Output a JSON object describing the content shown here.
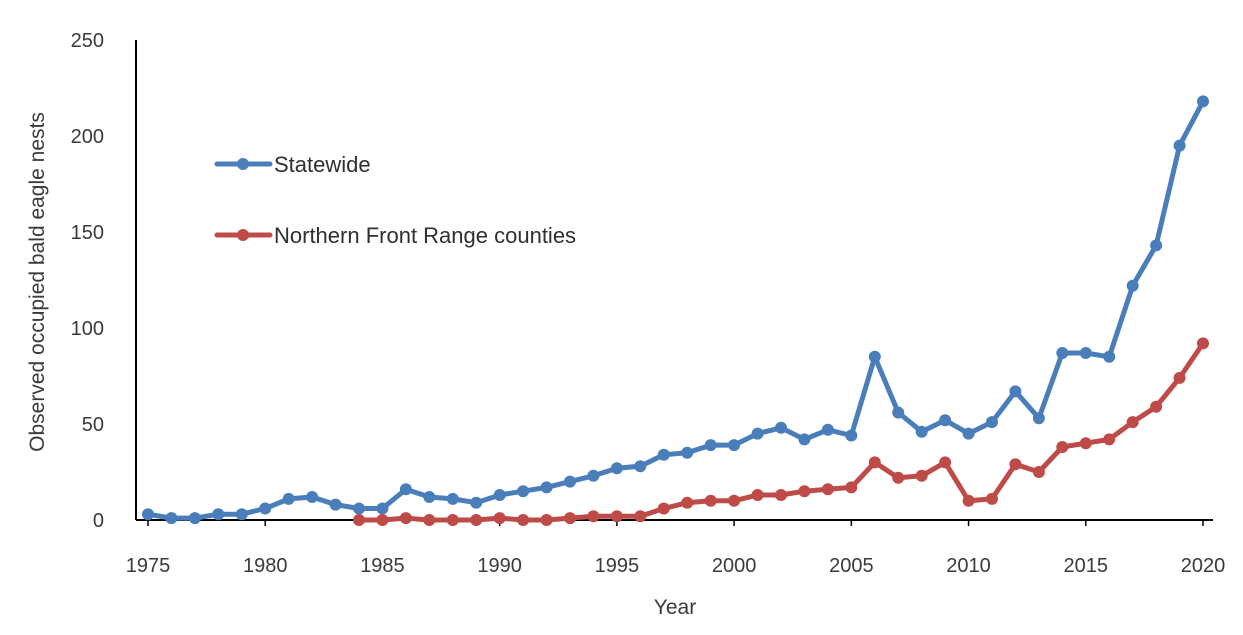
{
  "chart_data": {
    "type": "line",
    "title": "",
    "xlabel": "Year",
    "ylabel": "Observed occupied bald eagle nests",
    "xlim": [
      1975,
      2020
    ],
    "ylim": [
      0,
      250
    ],
    "x_ticks": [
      "1975",
      "1980",
      "1985",
      "1990",
      "1995",
      "2000",
      "2005",
      "2010",
      "2015",
      "2020"
    ],
    "y_ticks": [
      "0",
      "50",
      "100",
      "150",
      "200",
      "250"
    ],
    "grid": false,
    "legend_position": "upper-left",
    "series": [
      {
        "name": "Statewide",
        "color": "#4a7ebb",
        "x": [
          1975,
          1976,
          1977,
          1978,
          1979,
          1980,
          1981,
          1982,
          1983,
          1984,
          1985,
          1986,
          1987,
          1988,
          1989,
          1990,
          1991,
          1992,
          1993,
          1994,
          1995,
          1996,
          1997,
          1998,
          1999,
          2000,
          2001,
          2002,
          2003,
          2004,
          2005,
          2006,
          2007,
          2008,
          2009,
          2010,
          2011,
          2012,
          2013,
          2014,
          2015,
          2016,
          2017,
          2018,
          2019,
          2020
        ],
        "values": [
          3,
          1,
          1,
          3,
          3,
          6,
          11,
          12,
          8,
          6,
          6,
          16,
          12,
          11,
          9,
          13,
          15,
          17,
          20,
          23,
          27,
          28,
          34,
          35,
          39,
          39,
          45,
          48,
          42,
          47,
          44,
          85,
          56,
          46,
          52,
          45,
          51,
          67,
          53,
          87,
          87,
          85,
          122,
          143,
          195,
          218
        ]
      },
      {
        "name": "Northern Front Range counties",
        "color": "#be4b48",
        "x": [
          1984,
          1985,
          1986,
          1987,
          1988,
          1989,
          1990,
          1991,
          1992,
          1993,
          1994,
          1995,
          1996,
          1997,
          1998,
          1999,
          2000,
          2001,
          2002,
          2003,
          2004,
          2005,
          2006,
          2007,
          2008,
          2009,
          2010,
          2011,
          2012,
          2013,
          2014,
          2015,
          2016,
          2017,
          2018,
          2019,
          2020
        ],
        "values": [
          0,
          0,
          1,
          0,
          0,
          0,
          1,
          0,
          0,
          1,
          2,
          2,
          2,
          6,
          9,
          10,
          10,
          13,
          13,
          15,
          16,
          17,
          30,
          22,
          23,
          30,
          10,
          11,
          29,
          25,
          38,
          40,
          42,
          51,
          59,
          74,
          92
        ]
      }
    ]
  }
}
